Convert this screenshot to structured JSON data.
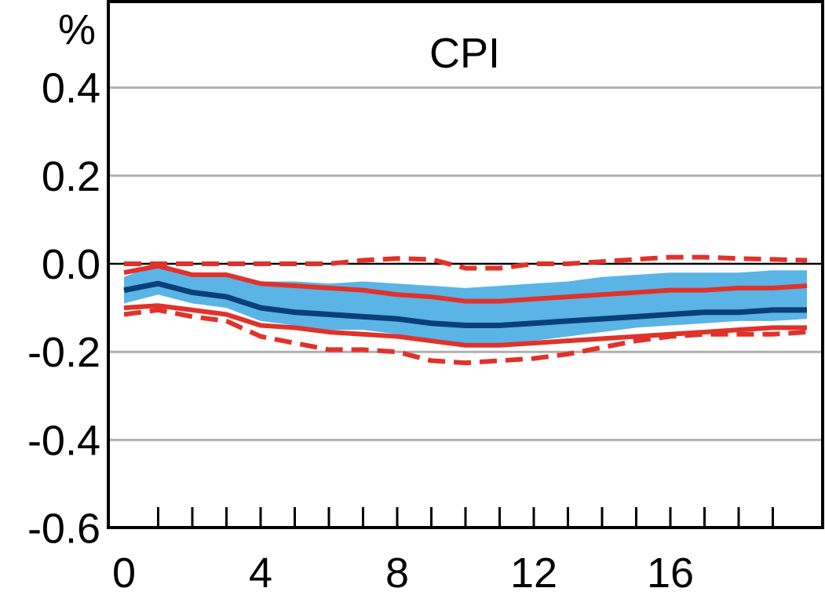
{
  "chart_data": {
    "type": "line",
    "title": "CPI",
    "ylabel": "%",
    "xlabel": "",
    "xlim": [
      -0.5,
      20
    ],
    "ylim": [
      -0.6,
      0.5
    ],
    "x_ticks": [
      0,
      4,
      8,
      12,
      16
    ],
    "x_minor_ticks": [
      1,
      2,
      3,
      4,
      5,
      6,
      7,
      8,
      9,
      10,
      11,
      12,
      13,
      14,
      15,
      16,
      17,
      18,
      19
    ],
    "y_ticks": [
      0.4,
      0.2,
      0.0,
      -0.2,
      -0.4,
      -0.6
    ],
    "y_tick_labels": [
      "0.4",
      "0.2",
      "0.0",
      "-0.2",
      "-0.4",
      "-0.6"
    ],
    "grid": "horizontal",
    "x": [
      0,
      1,
      2,
      3,
      4,
      5,
      6,
      7,
      8,
      9,
      10,
      11,
      12,
      13,
      14,
      15,
      16,
      17,
      18,
      19,
      20
    ],
    "series": [
      {
        "role": "band",
        "color": "#5ab4e6",
        "upper": [
          -0.03,
          0.0,
          -0.02,
          -0.02,
          -0.04,
          -0.04,
          -0.045,
          -0.04,
          -0.045,
          -0.05,
          -0.055,
          -0.05,
          -0.045,
          -0.04,
          -0.03,
          -0.025,
          -0.02,
          -0.02,
          -0.02,
          -0.015,
          -0.015
        ],
        "lower": [
          -0.09,
          -0.07,
          -0.09,
          -0.1,
          -0.13,
          -0.14,
          -0.15,
          -0.15,
          -0.16,
          -0.17,
          -0.18,
          -0.18,
          -0.175,
          -0.165,
          -0.155,
          -0.145,
          -0.14,
          -0.135,
          -0.13,
          -0.13,
          -0.125
        ]
      },
      {
        "role": "median",
        "color": "#0a3f7a",
        "values": [
          -0.06,
          -0.045,
          -0.065,
          -0.075,
          -0.1,
          -0.11,
          -0.115,
          -0.12,
          -0.125,
          -0.135,
          -0.14,
          -0.14,
          -0.135,
          -0.13,
          -0.125,
          -0.12,
          -0.115,
          -0.11,
          -0.11,
          -0.105,
          -0.105
        ]
      },
      {
        "role": "upper-solid",
        "color": "#e0322a",
        "dash": "solid",
        "values": [
          -0.02,
          -0.005,
          -0.025,
          -0.025,
          -0.045,
          -0.05,
          -0.055,
          -0.06,
          -0.07,
          -0.075,
          -0.085,
          -0.085,
          -0.08,
          -0.075,
          -0.07,
          -0.065,
          -0.06,
          -0.06,
          -0.055,
          -0.055,
          -0.05
        ]
      },
      {
        "role": "lower-solid",
        "color": "#e0322a",
        "dash": "solid",
        "values": [
          -0.1,
          -0.095,
          -0.105,
          -0.115,
          -0.14,
          -0.145,
          -0.155,
          -0.16,
          -0.165,
          -0.175,
          -0.185,
          -0.185,
          -0.18,
          -0.175,
          -0.17,
          -0.165,
          -0.16,
          -0.155,
          -0.15,
          -0.145,
          -0.145
        ]
      },
      {
        "role": "upper-dashed",
        "color": "#e0322a",
        "dash": "dashed",
        "values": [
          0.0,
          0.0,
          0.0,
          0.0,
          0.0,
          0.0,
          0.0,
          0.008,
          0.012,
          0.01,
          -0.01,
          -0.01,
          0.0,
          0.0,
          0.005,
          0.01,
          0.015,
          0.015,
          0.012,
          0.01,
          0.008
        ]
      },
      {
        "role": "lower-dashed",
        "color": "#e0322a",
        "dash": "dashed",
        "values": [
          -0.115,
          -0.105,
          -0.12,
          -0.13,
          -0.165,
          -0.18,
          -0.195,
          -0.195,
          -0.2,
          -0.22,
          -0.225,
          -0.22,
          -0.215,
          -0.205,
          -0.19,
          -0.175,
          -0.165,
          -0.16,
          -0.16,
          -0.16,
          -0.155
        ]
      }
    ],
    "colors": {
      "axis": "#000000",
      "grid": "#b0b0b0",
      "zero_line": "#000000"
    }
  }
}
